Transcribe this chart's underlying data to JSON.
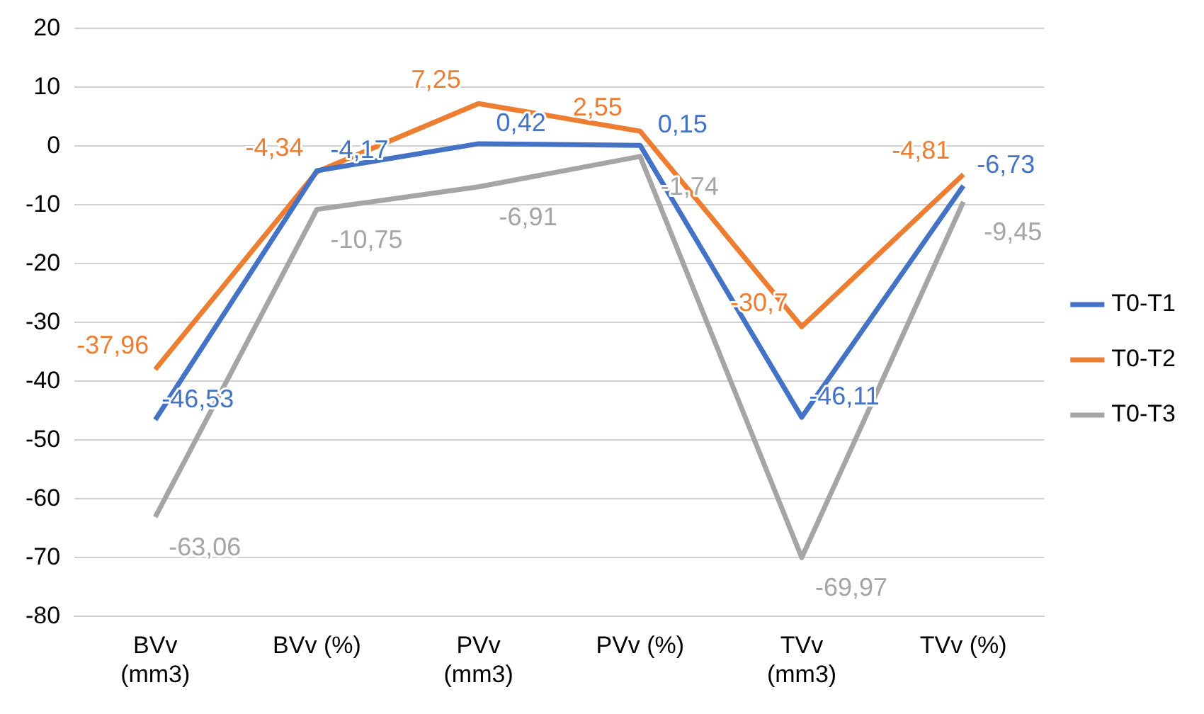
{
  "chart_data": {
    "type": "line",
    "categories": [
      "BVv (mm3)",
      "BVv (%)",
      "PVv (mm3)",
      "PVv (%)",
      "TVv (mm3)",
      "TVv (%)"
    ],
    "series": [
      {
        "name": "T0-T1",
        "color": "#4472c4",
        "values": [
          -46.53,
          -4.17,
          0.42,
          0.15,
          -46.11,
          -6.73
        ],
        "value_labels": [
          "-46,53",
          "-4,17",
          "0,42",
          "0,15",
          "-46,11",
          "-6,73"
        ]
      },
      {
        "name": "T0-T2",
        "color": "#ed7d31",
        "values": [
          -37.96,
          -4.34,
          7.25,
          2.55,
          -30.7,
          -4.81
        ],
        "value_labels": [
          "-37,96",
          "-4,34",
          "7,25",
          "2,55",
          "-30,7",
          "-4,81"
        ]
      },
      {
        "name": "T0-T3",
        "color": "#a5a5a5",
        "values": [
          -63.06,
          -10.75,
          -6.91,
          -1.74,
          -69.97,
          -9.45
        ],
        "value_labels": [
          "-63,06",
          "-10,75",
          "-6,91",
          "-1,74",
          "-69,97",
          "-9,45"
        ]
      }
    ],
    "ylim": [
      -80,
      20
    ],
    "yticks": [
      -80,
      -70,
      -60,
      -50,
      -40,
      -30,
      -20,
      -10,
      0,
      10,
      20
    ],
    "grid": "y",
    "legend": "right",
    "marker": "none",
    "line_style": "solid"
  }
}
